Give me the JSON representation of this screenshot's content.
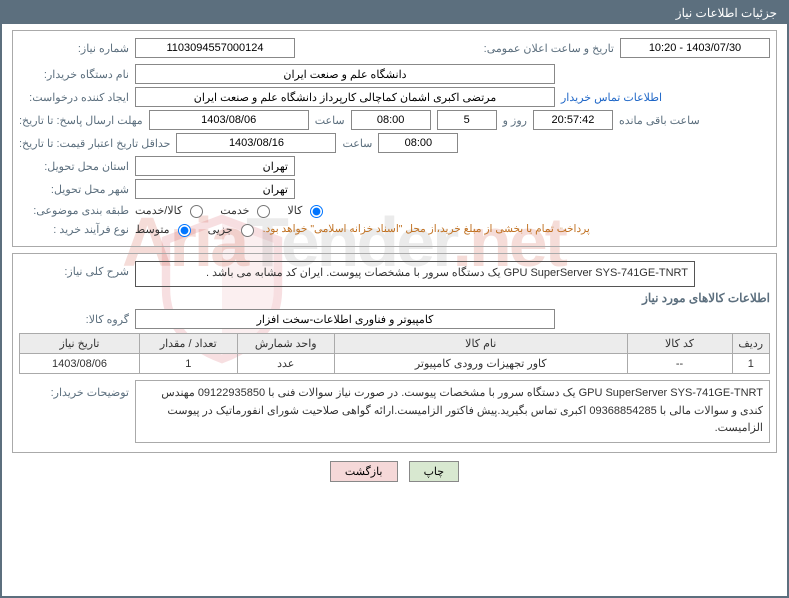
{
  "header": {
    "title": "جزئیات اطلاعات نیاز"
  },
  "section1": {
    "need_number_label": "شماره نیاز:",
    "need_number": "1103094557000124",
    "announce_label": "تاریخ و ساعت اعلان عمومی:",
    "announce_value": "1403/07/30 - 10:20",
    "buyer_org_label": "نام دستگاه خریدار:",
    "buyer_org": "دانشگاه علم و صنعت ایران",
    "requester_label": "ایجاد کننده درخواست:",
    "requester": "مرتضی اکبری اشمان کماچالی کارپرداز دانشگاه علم و صنعت ایران",
    "contact_link": "اطلاعات تماس خریدار",
    "deadline_label": "مهلت ارسال پاسخ: تا تاریخ:",
    "deadline_date": "1403/08/06",
    "time_label": "ساعت",
    "deadline_time": "08:00",
    "days_remaining": "5",
    "days_word": "روز و",
    "time_remaining": "20:57:42",
    "remaining_suffix": "ساعت باقی مانده",
    "price_valid_label": "حداقل تاریخ اعتبار قیمت: تا تاریخ:",
    "price_valid_date": "1403/08/16",
    "price_valid_time": "08:00",
    "province_label": "استان محل تحویل:",
    "province": "تهران",
    "city_label": "شهر محل تحویل:",
    "city": "تهران",
    "category_label": "طبقه بندی موضوعی:",
    "cat_opts": {
      "goods": "کالا",
      "service": "خدمت",
      "both": "کالا/خدمت"
    },
    "cat_selected": "goods",
    "process_label": "نوع فرآیند خرید :",
    "proc_opts": {
      "partial": "جزیی",
      "medium": "متوسط"
    },
    "proc_selected": "medium",
    "process_note": "پرداخت تمام یا بخشی از مبلغ خرید،از محل \"اسناد خزانه اسلامی\" خواهد بود."
  },
  "section2": {
    "desc_label": "شرح کلی نیاز:",
    "desc_text": "GPU SuperServer SYS-741GE-TNRT یک دستگاه سرور با مشخصات پیوست. ایران کد مشابه می باشد .",
    "goods_info_title": "اطلاعات کالاهای مورد نیاز",
    "goods_group_label": "گروه کالا:",
    "goods_group": "کامپیوتر و فناوری اطلاعات-سخت افزار",
    "table": {
      "columns": [
        "ردیف",
        "کد کالا",
        "نام کالا",
        "واحد شمارش",
        "تعداد / مقدار",
        "تاریخ نیاز"
      ],
      "col_widths": [
        "5%",
        "14%",
        "39%",
        "13%",
        "13%",
        "16%"
      ],
      "rows": [
        [
          "1",
          "--",
          "کاور تجهیزات ورودی کامپیوتر",
          "عدد",
          "1",
          "1403/08/06"
        ]
      ]
    },
    "buyer_note_label": "توضیحات خریدار:",
    "buyer_note": "GPU SuperServer SYS-741GE-TNRT یک دستگاه سرور با مشخصات پیوست. در صورت نیاز سوالات فنی با 09122935850 مهندس کندی و سوالات مالی با 09368854285 اکبری تماس بگیرید.پیش فاکتور الزامیست.ارائه گواهی صلاحیت شورای انفورماتیک در پیوست الزامیست."
  },
  "buttons": {
    "print": "چاپ",
    "back": "بازگشت"
  },
  "watermark": {
    "part1": "Aria",
    "part2": "Tender",
    "part3": ".net"
  },
  "colors": {
    "header_bg": "#5c6f7e",
    "link": "#1e66c7",
    "note": "#c07020",
    "border": "#aaaaaa"
  }
}
